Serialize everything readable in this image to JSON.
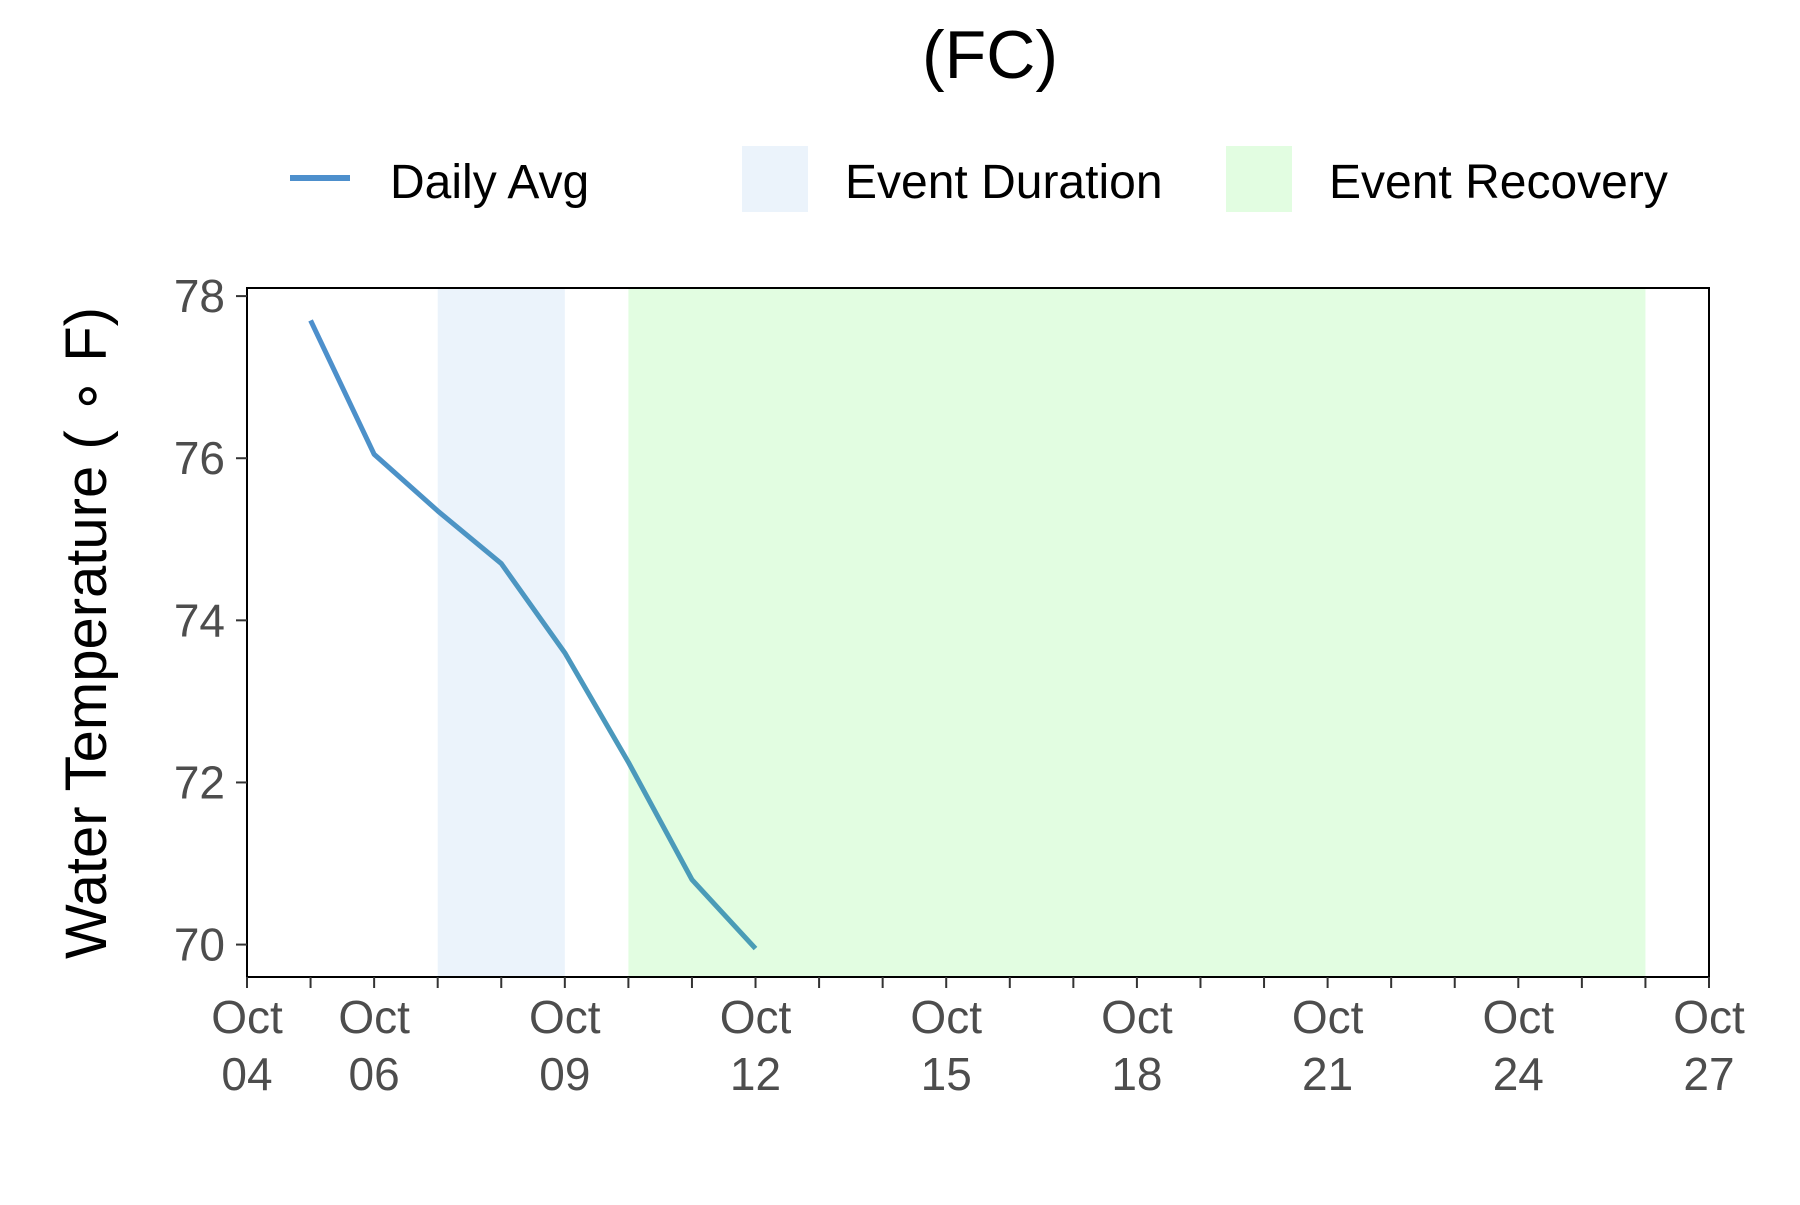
{
  "chart_data": {
    "type": "line",
    "title": "(FC)",
    "xlabel": "",
    "ylabel": "Water Temperature ( ∘ F)",
    "legend": {
      "placement": "top",
      "entries": [
        {
          "label": "Daily Avg",
          "kind": "line",
          "color": "#4D8FCC"
        },
        {
          "label": "Event Duration",
          "kind": "fill",
          "color": "#EBF3FB"
        },
        {
          "label": "Event Recovery",
          "kind": "fill",
          "color": "#E2FDE1"
        }
      ]
    },
    "xlim": [
      "2023-10-04",
      "2023-10-27"
    ],
    "ylim": [
      69.6,
      78.1
    ],
    "x_ticks": [
      {
        "date": "2023-10-04",
        "label": [
          "Oct",
          "04"
        ]
      },
      {
        "date": "2023-10-06",
        "label": [
          "Oct",
          "06"
        ]
      },
      {
        "date": "2023-10-09",
        "label": [
          "Oct",
          "09"
        ]
      },
      {
        "date": "2023-10-12",
        "label": [
          "Oct",
          "12"
        ]
      },
      {
        "date": "2023-10-15",
        "label": [
          "Oct",
          "15"
        ]
      },
      {
        "date": "2023-10-18",
        "label": [
          "Oct",
          "18"
        ]
      },
      {
        "date": "2023-10-21",
        "label": [
          "Oct",
          "21"
        ]
      },
      {
        "date": "2023-10-24",
        "label": [
          "Oct",
          "24"
        ]
      },
      {
        "date": "2023-10-27",
        "label": [
          "Oct",
          "27"
        ]
      }
    ],
    "x_minor_ticks": [
      "2023-10-05",
      "2023-10-07",
      "2023-10-08",
      "2023-10-10",
      "2023-10-11",
      "2023-10-13",
      "2023-10-14",
      "2023-10-16",
      "2023-10-17",
      "2023-10-19",
      "2023-10-20",
      "2023-10-22",
      "2023-10-23",
      "2023-10-25",
      "2023-10-26"
    ],
    "y_ticks": [
      70,
      72,
      74,
      76,
      78
    ],
    "grid": false,
    "shaded_regions": [
      {
        "name": "Event Duration",
        "start": "2023-10-07",
        "end": "2023-10-09",
        "color": "#EBF3FB"
      },
      {
        "name": "Event Recovery",
        "start": "2023-10-10",
        "end": "2023-10-26",
        "color": "#E2FDE1"
      }
    ],
    "series": [
      {
        "name": "Daily Avg",
        "color_start": "#4D8FCC",
        "color_end": "#4A9DB5",
        "points": [
          {
            "x": "2023-10-05",
            "y": 77.7
          },
          {
            "x": "2023-10-06",
            "y": 76.05
          },
          {
            "x": "2023-10-07",
            "y": 75.35
          },
          {
            "x": "2023-10-08",
            "y": 74.7
          },
          {
            "x": "2023-10-09",
            "y": 73.6
          },
          {
            "x": "2023-10-10",
            "y": 72.25
          },
          {
            "x": "2023-10-11",
            "y": 70.8
          },
          {
            "x": "2023-10-12",
            "y": 69.95
          }
        ]
      }
    ]
  }
}
